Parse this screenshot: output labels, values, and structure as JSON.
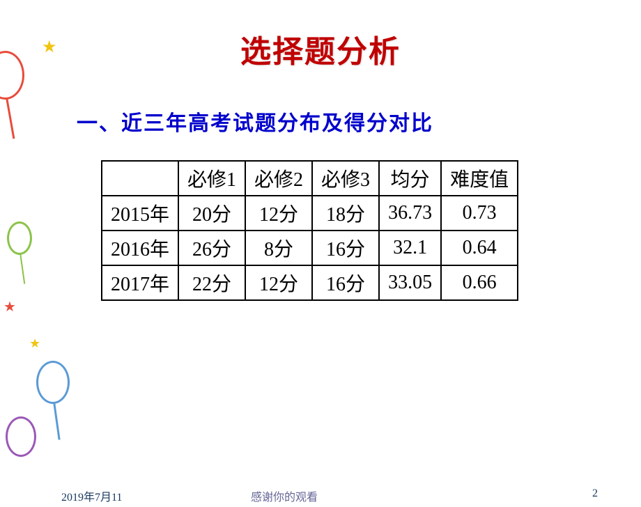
{
  "decorations": {
    "balloon_colors": {
      "red": "#e74c3c",
      "green": "#8bc34a",
      "blue": "#5b9bd5",
      "purple": "#9b59b6"
    },
    "star_colors": {
      "yellow": "#f1c40f",
      "red": "#e74c3c"
    }
  },
  "slide": {
    "title": "选择题分析",
    "title_color": "#c00000",
    "title_fontsize": 44
  },
  "section": {
    "heading": "一、近三年高考试题分布及得分对比",
    "heading_color": "#0000cc",
    "heading_fontsize": 30
  },
  "table": {
    "type": "table",
    "border_color": "#000000",
    "cell_fontsize": 28,
    "columns": [
      "",
      "必修1",
      "必修2",
      "必修3",
      "均分",
      "难度值"
    ],
    "rows": [
      {
        "year": "2015年",
        "bixiu1": "20分",
        "bixiu2": "12分",
        "bixiu3": "18分",
        "junfen": "36.73",
        "nandu": "0.73"
      },
      {
        "year": "2016年",
        "bixiu1": "26分",
        "bixiu2": "8分",
        "bixiu3": "16分",
        "junfen": "32.1",
        "nandu": "0.64"
      },
      {
        "year": "2017年",
        "bixiu1": "22分",
        "bixiu2": "12分",
        "bixiu3": "16分",
        "junfen": "33.05",
        "nandu": "0.66"
      }
    ]
  },
  "footer": {
    "date": "2019年7月11",
    "thanks": "感谢你的观看",
    "page": "2",
    "date_color": "#17375e",
    "thanks_color": "#666699",
    "page_color": "#17375e",
    "fontsize": 16
  },
  "background_color": "#ffffff"
}
